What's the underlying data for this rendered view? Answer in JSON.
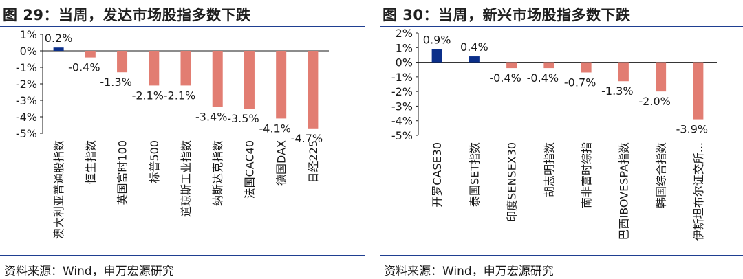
{
  "colors": {
    "positive": "#0b2f8a",
    "negative": "#e27d72",
    "rule": "#1f3f91",
    "axis": "#1a1a1a"
  },
  "chart_data": [
    {
      "type": "bar",
      "title": "图 29：当周，发达市场股指多数下跌",
      "source": "资料来源：Wind，申万宏源研究",
      "categories": [
        "澳大利亚普通股指数",
        "恒生指数",
        "英国富时100",
        "标普500",
        "道琼斯工业指数",
        "纳斯达克指数",
        "法国CAC40",
        "德国DAX",
        "日经225"
      ],
      "values": [
        0.2,
        -0.4,
        -1.3,
        -2.1,
        -2.1,
        -3.4,
        -3.5,
        -4.1,
        -4.7
      ],
      "data_labels": [
        "0.2%",
        "-0.4%",
        "-1.3%",
        "-2.1%",
        "-2.1%",
        "-3.4%",
        "-3.5%",
        "-4.1%",
        "-4.7%"
      ],
      "y_ticks": [
        "1%",
        "0%",
        "-1%",
        "-2%",
        "-3%",
        "-4%",
        "-5%"
      ],
      "ylim": [
        -5,
        1
      ],
      "xlabel": "",
      "ylabel": ""
    },
    {
      "type": "bar",
      "title": "图 30：当周，新兴市场股指多数下跌",
      "source": "资料来源：Wind，申万宏源研究",
      "categories": [
        "开罗CASE30",
        "泰国SET指数",
        "印度SENSEX30",
        "胡志明指数",
        "南非富时综指",
        "巴西IBOVESPA指数",
        "韩国综合指数",
        "伊斯坦布尔证交所..."
      ],
      "values": [
        0.9,
        0.4,
        -0.4,
        -0.4,
        -0.7,
        -1.3,
        -2.0,
        -3.9
      ],
      "data_labels": [
        "0.9%",
        "0.4%",
        "-0.4%",
        "-0.4%",
        "-0.7%",
        "-1.3%",
        "-2.0%",
        "-3.9%"
      ],
      "y_ticks": [
        "2%",
        "1%",
        "0%",
        "-1%",
        "-2%",
        "-3%",
        "-4%",
        "-5%"
      ],
      "ylim": [
        -5,
        2
      ],
      "xlabel": "",
      "ylabel": ""
    }
  ]
}
